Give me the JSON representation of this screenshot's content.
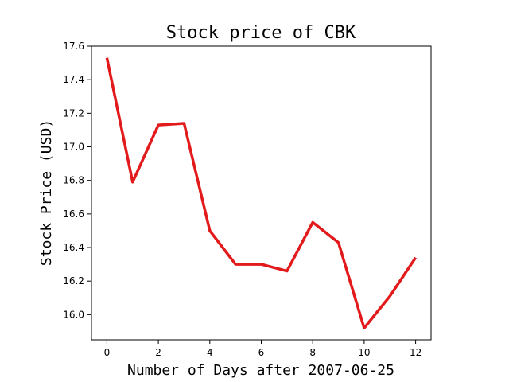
{
  "chart_data": {
    "type": "line",
    "title": "Stock price of CBK",
    "xlabel": "Number of Days after 2007-06-25",
    "ylabel": "Stock Price (USD)",
    "xlim": [
      -0.6,
      12.6
    ],
    "ylim": [
      15.85,
      17.6
    ],
    "x_ticks": [
      0,
      2,
      4,
      6,
      8,
      10,
      12
    ],
    "y_ticks": [
      16.0,
      16.2,
      16.4,
      16.6,
      16.8,
      17.0,
      17.2,
      17.4,
      17.6
    ],
    "x_tick_labels": [
      "0",
      "2",
      "4",
      "6",
      "8",
      "10",
      "12"
    ],
    "y_tick_labels": [
      "16.0",
      "16.2",
      "16.4",
      "16.6",
      "16.8",
      "17.0",
      "17.2",
      "17.4",
      "17.6"
    ],
    "grid": false,
    "series": [
      {
        "color": "#e31a1c",
        "x": [
          0,
          1,
          2,
          3,
          4,
          5,
          6,
          7,
          8,
          9,
          10,
          11,
          12
        ],
        "y": [
          17.53,
          16.79,
          17.13,
          17.14,
          16.5,
          16.3,
          16.3,
          16.26,
          16.55,
          16.43,
          15.92,
          16.11,
          16.34
        ]
      }
    ]
  }
}
